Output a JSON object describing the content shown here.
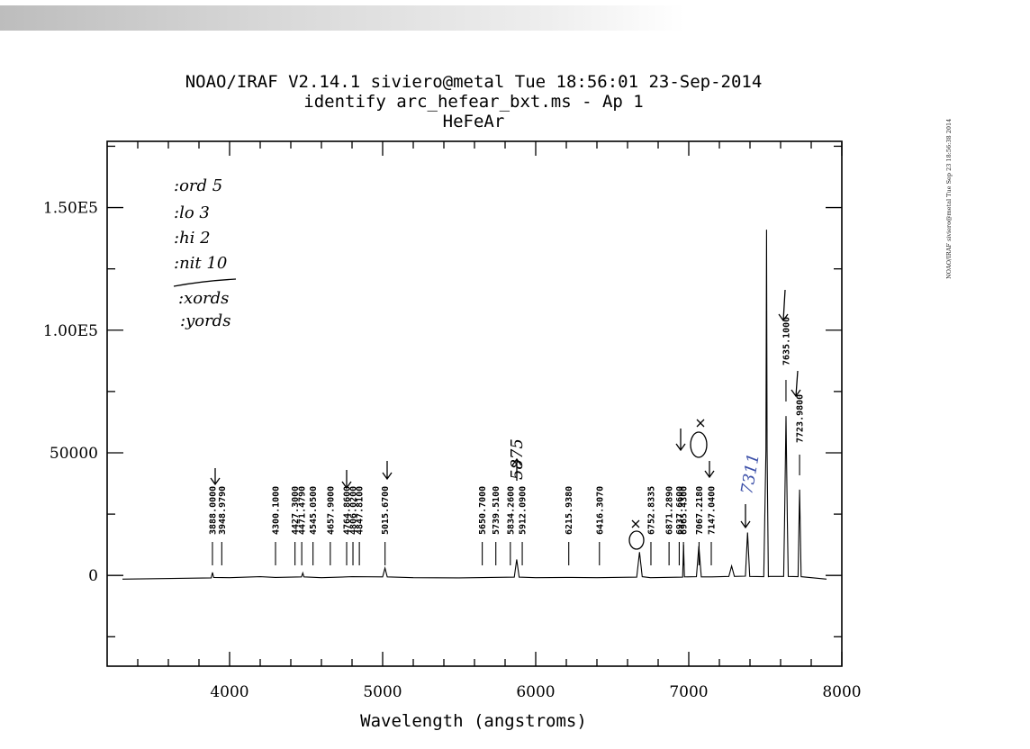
{
  "header": {
    "line1": "NOAO/IRAF V2.14.1 siviero@metal Tue 18:56:01 23-Sep-2014",
    "line2": "identify arc_hefear_bxt.ms - Ap 1",
    "line3": "HeFeAr"
  },
  "side_stamp": "NOAO/IRAF siviero@metal Tue Sep 23 18:56:38 2014",
  "notes": [
    ":ord 5",
    ":lo 3",
    ":hi 2",
    ":nit 10",
    ":xords",
    ":yords"
  ],
  "annotation_5875": "5875",
  "annotation_7311": "7311",
  "chart_data": {
    "type": "line",
    "xlabel": "Wavelength (angstroms)",
    "ylabel": "",
    "xlim": [
      3200,
      8000
    ],
    "ylim": [
      -37000,
      177000
    ],
    "x_ticks": [
      "4000",
      "5000",
      "6000",
      "7000",
      "8000"
    ],
    "y_ticks": [
      "0",
      "50000",
      "1.00E5",
      "1.50E5"
    ],
    "series": [
      {
        "x": [
          3300,
          3880,
          3888,
          3896,
          4000,
          4200,
          4300,
          4470,
          4478,
          4486,
          4600,
          4800,
          5000,
          5015,
          5030,
          5200,
          5500,
          5860,
          5876,
          5892,
          6000,
          6200,
          6400,
          6660,
          6678,
          6696,
          6750,
          6960,
          6966,
          6972,
          7050,
          7066,
          7082,
          7150,
          7262,
          7280,
          7298,
          7370,
          7384,
          7398,
          7490,
          7504,
          7508,
          7512,
          7520,
          7530,
          7620,
          7626,
          7635,
          7644,
          7650,
          7714,
          7724,
          7734,
          7900
        ],
        "y": [
          -1500,
          -1000,
          1200,
          -800,
          -900,
          -500,
          -800,
          -600,
          1000,
          -600,
          -900,
          -500,
          -600,
          3000,
          -600,
          -900,
          -1000,
          -700,
          6500,
          -700,
          -900,
          -800,
          -900,
          -700,
          9500,
          -500,
          -900,
          -700,
          12500,
          -600,
          -500,
          12000,
          -600,
          -600,
          -400,
          3800,
          -400,
          -300,
          17500,
          -400,
          -500,
          51000,
          141000,
          51000,
          -500,
          -400,
          -400,
          22000,
          65000,
          22000,
          -400,
          -500,
          35000,
          -500,
          -1500
        ]
      }
    ],
    "identified_lines": [
      {
        "wave": 3888.0,
        "label": "3888.0000"
      },
      {
        "wave": 3948.98,
        "label": "3948.9790"
      },
      {
        "wave": 4300.1,
        "label": "4300.1000"
      },
      {
        "wave": 4427.3,
        "label": "4427.3000"
      },
      {
        "wave": 4471.48,
        "label": "4471.4790"
      },
      {
        "wave": 4545.05,
        "label": "4545.0500"
      },
      {
        "wave": 4657.9,
        "label": "4657.9000"
      },
      {
        "wave": 4764.86,
        "label": "4764.8600"
      },
      {
        "wave": 4806.02,
        "label": "4806.0200"
      },
      {
        "wave": 4847.81,
        "label": "4847.8100"
      },
      {
        "wave": 5015.67,
        "label": "5015.6700"
      },
      {
        "wave": 5650.7,
        "label": "5650.7000"
      },
      {
        "wave": 5739.51,
        "label": "5739.5100"
      },
      {
        "wave": 5834.26,
        "label": "5834.2600"
      },
      {
        "wave": 5912.09,
        "label": "5912.0900"
      },
      {
        "wave": 6215.94,
        "label": "6215.9380"
      },
      {
        "wave": 6416.31,
        "label": "6416.3070"
      },
      {
        "wave": 6752.83,
        "label": "6752.8335"
      },
      {
        "wave": 6871.29,
        "label": "6871.2890"
      },
      {
        "wave": 6937.66,
        "label": "6937.6600"
      },
      {
        "wave": 6965.43,
        "label": "6965.4300"
      },
      {
        "wave": 7067.22,
        "label": "7067.2180"
      },
      {
        "wave": 7147.04,
        "label": "7147.0400"
      },
      {
        "wave": 7635.1,
        "label": "7635.1000"
      },
      {
        "wave": 7723.98,
        "label": "7723.9800"
      }
    ]
  },
  "colors": {
    "annotation_blue": "#3b4fa8",
    "ink": "#000000"
  }
}
